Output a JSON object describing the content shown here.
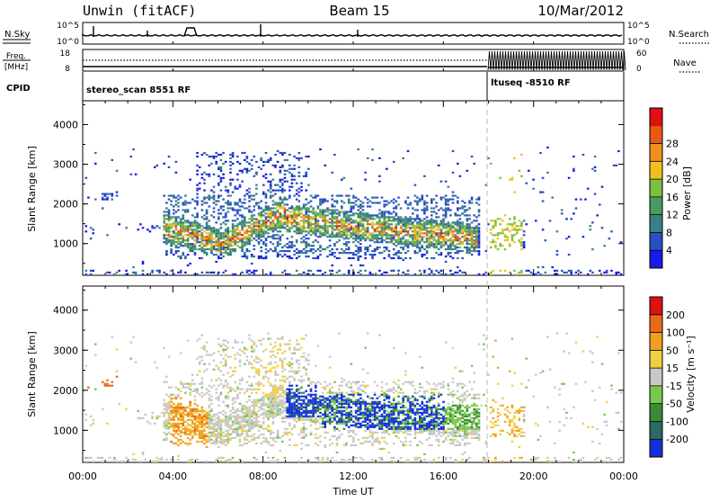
{
  "header": {
    "radar": "Unwin (fitACF)",
    "beam": "Beam 15",
    "date": "10/Mar/2012"
  },
  "panels": {
    "nsky": {
      "left_label": "N.Sky",
      "left_ticks": [
        "10^5",
        "10^0"
      ],
      "right_label": "N.Search",
      "right_ticks": [
        "10^5",
        "10^0"
      ]
    },
    "freq": {
      "left_label": "Freq.",
      "left_unit": "[MHz]",
      "left_ticks": [
        "18",
        "8"
      ],
      "right_label": "Nave",
      "right_ticks": [
        "60",
        "0"
      ]
    },
    "cpid": {
      "label": "CPID",
      "programs": [
        {
          "name": "stereo_scan 8551 RF",
          "start_hour": 0
        },
        {
          "name": "ltuseq -8510 RF",
          "start_hour": 18
        }
      ]
    }
  },
  "chart_data": [
    {
      "type": "heatmap",
      "quantity": "Power",
      "ylabel": "Slant Range [km]",
      "ylim": [
        200,
        4600
      ],
      "yticks": [
        "1000",
        "2000",
        "3000",
        "4000"
      ],
      "xlim_hours": [
        0,
        24
      ],
      "colorbar": {
        "label": "Power [dB]",
        "ticks": [
          "4",
          "8",
          "12",
          "16",
          "20",
          "24",
          "28"
        ],
        "colors": [
          "#1a1ae6",
          "#2a4fc4",
          "#3a7f86",
          "#4b9a63",
          "#7fbf3f",
          "#f0c020",
          "#f09020",
          "#e85a14",
          "#e01010"
        ]
      }
    },
    {
      "type": "heatmap",
      "quantity": "Velocity",
      "ylabel": "Slant Range [km]",
      "ylim": [
        200,
        4600
      ],
      "yticks": [
        "1000",
        "2000",
        "3000",
        "4000"
      ],
      "xlim_hours": [
        0,
        24
      ],
      "colorbar": {
        "label": "Velocity [m s⁻¹]",
        "ticks": [
          "200",
          "100",
          "50",
          "15",
          "-15",
          "-50",
          "-100",
          "-200"
        ],
        "colors": [
          "#1530d8",
          "#2c6a66",
          "#3a8a3a",
          "#7ac84a",
          "#c8c8c8",
          "#f0d040",
          "#f0a020",
          "#e86a18",
          "#e01010"
        ]
      }
    }
  ],
  "xaxis": {
    "label": "Time UT",
    "ticks": [
      "00:00",
      "04:00",
      "08:00",
      "12:00",
      "16:00",
      "20:00",
      "00:00"
    ]
  }
}
